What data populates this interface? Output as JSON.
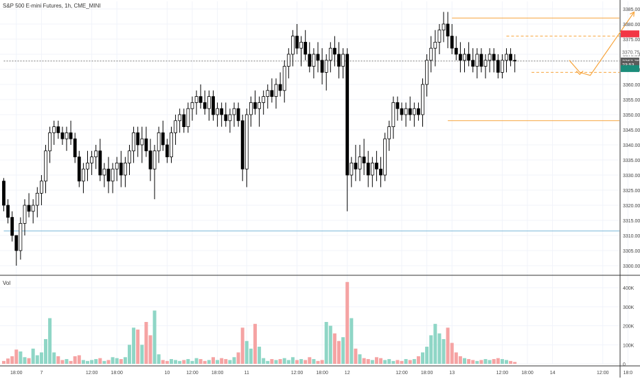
{
  "chart_data": {
    "type": "candlestick",
    "title": "S&P 500 E-mini Futures, 1h, CME_MINI",
    "price_axis": {
      "ticks": [
        3300,
        3305,
        3310,
        3315,
        3320,
        3325,
        3330,
        3335,
        3340,
        3345,
        3350,
        3355,
        3360,
        3365,
        3370,
        3375,
        3380,
        3385
      ],
      "tick_labels": [
        "3300.00",
        "3305.00",
        "3310.00",
        "3315.00",
        "3320.00",
        "3325.00",
        "3330.00",
        "3335.00",
        "3340.00",
        "3345.00",
        "3350.00",
        "3355.00",
        "3360.00",
        "3365.00",
        "3370.00",
        "3375.00",
        "3380.00",
        "3385.00"
      ],
      "range": [
        3297.5,
        3387.5
      ]
    },
    "price_labels": [
      {
        "value": 3376.75,
        "text": "3376.75",
        "color": "#f23645"
      },
      {
        "value": 3370.75,
        "text": "3370.75",
        "color": "#5b5b5b"
      },
      {
        "value": 3367.75,
        "text": "3367.75",
        "color": "#ffffff"
      },
      {
        "value": 3366.6,
        "text": "23:53",
        "color": "#ffffff"
      },
      {
        "value": 3365.25,
        "text": "3365.25",
        "color": "#1b8c7a"
      }
    ],
    "volume_axis": {
      "ticks": [
        0,
        100000,
        200000,
        300000,
        400000
      ],
      "tick_labels": [
        "0",
        "100K",
        "200K",
        "300K",
        "400K"
      ],
      "range": [
        0,
        440000
      ],
      "label": "Vol"
    },
    "time_axis_labels": [
      {
        "text": "18:00",
        "index": 3
      },
      {
        "text": "7",
        "index": 9
      },
      {
        "text": "12:00",
        "index": 21
      },
      {
        "text": "18:00",
        "index": 27
      },
      {
        "text": "10",
        "index": 39
      },
      {
        "text": "12:00",
        "index": 45
      },
      {
        "text": "18:00",
        "index": 51
      },
      {
        "text": "11",
        "index": 58
      },
      {
        "text": "12:00",
        "index": 70
      },
      {
        "text": "18:00",
        "index": 76
      },
      {
        "text": "12",
        "index": 82
      },
      {
        "text": "12:00",
        "index": 95
      },
      {
        "text": "18:00",
        "index": 101
      },
      {
        "text": "13",
        "index": 107
      },
      {
        "text": "12:00",
        "index": 119
      },
      {
        "text": "18:00",
        "index": 125
      },
      {
        "text": "14",
        "index": 131
      },
      {
        "text": "12:00",
        "index": 143
      },
      {
        "text": "18:0",
        "index": 149
      }
    ],
    "candles": [
      [
        3328,
        3329,
        3318,
        3320,
        15000
      ],
      [
        3320,
        3322,
        3314,
        3316,
        28000
      ],
      [
        3316,
        3318,
        3308,
        3310,
        40000
      ],
      [
        3310,
        3310,
        3300,
        3305,
        75000
      ],
      [
        3305,
        3316,
        3302,
        3314,
        65000
      ],
      [
        3314,
        3322,
        3310,
        3320,
        35000
      ],
      [
        3320,
        3324,
        3316,
        3318,
        30000
      ],
      [
        3318,
        3322,
        3314,
        3320,
        80000
      ],
      [
        3320,
        3326,
        3316,
        3324,
        45000
      ],
      [
        3324,
        3330,
        3320,
        3328,
        60000
      ],
      [
        3328,
        3340,
        3324,
        3338,
        130000
      ],
      [
        3338,
        3346,
        3334,
        3344,
        240000
      ],
      [
        3344,
        3348,
        3340,
        3346,
        60000
      ],
      [
        3346,
        3348,
        3342,
        3344,
        40000
      ],
      [
        3344,
        3346,
        3340,
        3342,
        20000
      ],
      [
        3342,
        3346,
        3338,
        3344,
        25000
      ],
      [
        3344,
        3348,
        3340,
        3342,
        15000
      ],
      [
        3342,
        3344,
        3334,
        3336,
        40000
      ],
      [
        3336,
        3338,
        3326,
        3328,
        45000
      ],
      [
        3328,
        3334,
        3324,
        3332,
        20000
      ],
      [
        3332,
        3338,
        3328,
        3334,
        15000
      ],
      [
        3334,
        3338,
        3330,
        3336,
        20000
      ],
      [
        3336,
        3340,
        3332,
        3338,
        25000
      ],
      [
        3338,
        3342,
        3328,
        3330,
        30000
      ],
      [
        3330,
        3334,
        3326,
        3332,
        15000
      ],
      [
        3332,
        3336,
        3324,
        3328,
        20000
      ],
      [
        3328,
        3334,
        3324,
        3332,
        35000
      ],
      [
        3332,
        3336,
        3328,
        3334,
        30000
      ],
      [
        3334,
        3338,
        3326,
        3330,
        25000
      ],
      [
        3330,
        3336,
        3326,
        3334,
        35000
      ],
      [
        3334,
        3340,
        3330,
        3338,
        100000
      ],
      [
        3338,
        3346,
        3334,
        3344,
        190000
      ],
      [
        3344,
        3346,
        3336,
        3340,
        180000
      ],
      [
        3340,
        3346,
        3334,
        3342,
        100000
      ],
      [
        3342,
        3346,
        3336,
        3338,
        220000
      ],
      [
        3338,
        3342,
        3328,
        3332,
        150000
      ],
      [
        3332,
        3340,
        3322,
        3338,
        280000
      ],
      [
        3338,
        3346,
        3334,
        3344,
        50000
      ],
      [
        3344,
        3348,
        3338,
        3340,
        20000
      ],
      [
        3340,
        3342,
        3334,
        3336,
        15000
      ],
      [
        3336,
        3346,
        3334,
        3344,
        25000
      ],
      [
        3344,
        3350,
        3340,
        3348,
        20000
      ],
      [
        3348,
        3352,
        3344,
        3350,
        15000
      ],
      [
        3350,
        3352,
        3344,
        3346,
        20000
      ],
      [
        3346,
        3354,
        3344,
        3352,
        25000
      ],
      [
        3352,
        3356,
        3348,
        3354,
        15000
      ],
      [
        3354,
        3358,
        3350,
        3356,
        30000
      ],
      [
        3356,
        3360,
        3352,
        3354,
        25000
      ],
      [
        3354,
        3358,
        3350,
        3352,
        15000
      ],
      [
        3352,
        3358,
        3348,
        3356,
        20000
      ],
      [
        3356,
        3358,
        3348,
        3350,
        35000
      ],
      [
        3350,
        3354,
        3346,
        3352,
        20000
      ],
      [
        3352,
        3354,
        3346,
        3350,
        30000
      ],
      [
        3350,
        3354,
        3346,
        3348,
        25000
      ],
      [
        3348,
        3352,
        3344,
        3350,
        20000
      ],
      [
        3350,
        3354,
        3346,
        3352,
        35000
      ],
      [
        3352,
        3354,
        3346,
        3348,
        60000
      ],
      [
        3348,
        3350,
        3328,
        3332,
        190000
      ],
      [
        3332,
        3352,
        3326,
        3350,
        120000
      ],
      [
        3350,
        3356,
        3346,
        3354,
        80000
      ],
      [
        3354,
        3358,
        3350,
        3352,
        210000
      ],
      [
        3352,
        3356,
        3346,
        3354,
        90000
      ],
      [
        3354,
        3358,
        3350,
        3356,
        30000
      ],
      [
        3356,
        3360,
        3352,
        3358,
        15000
      ],
      [
        3358,
        3362,
        3354,
        3356,
        25000
      ],
      [
        3356,
        3362,
        3352,
        3360,
        20000
      ],
      [
        3360,
        3364,
        3356,
        3358,
        25000
      ],
      [
        3358,
        3368,
        3354,
        3366,
        30000
      ],
      [
        3366,
        3372,
        3362,
        3370,
        20000
      ],
      [
        3370,
        3378,
        3366,
        3376,
        35000
      ],
      [
        3376,
        3380,
        3370,
        3372,
        20000
      ],
      [
        3372,
        3376,
        3366,
        3374,
        25000
      ],
      [
        3374,
        3378,
        3368,
        3370,
        20000
      ],
      [
        3370,
        3374,
        3364,
        3366,
        35000
      ],
      [
        3366,
        3372,
        3362,
        3370,
        25000
      ],
      [
        3370,
        3374,
        3364,
        3368,
        15000
      ],
      [
        3368,
        3372,
        3360,
        3364,
        20000
      ],
      [
        3364,
        3370,
        3358,
        3368,
        220000
      ],
      [
        3368,
        3374,
        3364,
        3372,
        200000
      ],
      [
        3372,
        3376,
        3366,
        3370,
        160000
      ],
      [
        3370,
        3374,
        3362,
        3366,
        120000
      ],
      [
        3366,
        3372,
        3362,
        3370,
        140000
      ],
      [
        3370,
        3372,
        3318,
        3330,
        430000
      ],
      [
        3330,
        3336,
        3326,
        3334,
        240000
      ],
      [
        3334,
        3340,
        3328,
        3332,
        80000
      ],
      [
        3332,
        3340,
        3328,
        3336,
        50000
      ],
      [
        3336,
        3342,
        3330,
        3334,
        30000
      ],
      [
        3334,
        3338,
        3326,
        3330,
        25000
      ],
      [
        3330,
        3336,
        3326,
        3334,
        20000
      ],
      [
        3334,
        3338,
        3328,
        3332,
        35000
      ],
      [
        3332,
        3336,
        3326,
        3330,
        30000
      ],
      [
        3330,
        3344,
        3328,
        3342,
        20000
      ],
      [
        3342,
        3348,
        3338,
        3346,
        25000
      ],
      [
        3346,
        3356,
        3342,
        3354,
        15000
      ],
      [
        3354,
        3356,
        3348,
        3352,
        20000
      ],
      [
        3352,
        3354,
        3348,
        3350,
        15000
      ],
      [
        3350,
        3354,
        3346,
        3352,
        25000
      ],
      [
        3352,
        3356,
        3348,
        3350,
        20000
      ],
      [
        3350,
        3354,
        3346,
        3352,
        25000
      ],
      [
        3352,
        3354,
        3348,
        3350,
        40000
      ],
      [
        3350,
        3362,
        3346,
        3360,
        60000
      ],
      [
        3360,
        3370,
        3356,
        3368,
        90000
      ],
      [
        3368,
        3376,
        3364,
        3372,
        150000
      ],
      [
        3372,
        3378,
        3366,
        3374,
        210000
      ],
      [
        3374,
        3380,
        3370,
        3378,
        160000
      ],
      [
        3378,
        3384,
        3374,
        3380,
        130000
      ],
      [
        3380,
        3384,
        3372,
        3376,
        190000
      ],
      [
        3376,
        3380,
        3370,
        3372,
        110000
      ],
      [
        3372,
        3376,
        3368,
        3370,
        60000
      ],
      [
        3370,
        3374,
        3364,
        3368,
        40000
      ],
      [
        3368,
        3372,
        3364,
        3370,
        30000
      ],
      [
        3370,
        3374,
        3366,
        3368,
        25000
      ],
      [
        3368,
        3372,
        3364,
        3366,
        20000
      ],
      [
        3366,
        3372,
        3362,
        3370,
        15000
      ],
      [
        3370,
        3372,
        3364,
        3366,
        20000
      ],
      [
        3366,
        3370,
        3362,
        3368,
        25000
      ],
      [
        3368,
        3372,
        3364,
        3370,
        20000
      ],
      [
        3370,
        3372,
        3364,
        3368,
        25000
      ],
      [
        3368,
        3370,
        3362,
        3364,
        30000
      ],
      [
        3364,
        3370,
        3362,
        3368,
        25000
      ],
      [
        3368,
        3372,
        3364,
        3370,
        20000
      ],
      [
        3370,
        3372,
        3366,
        3368,
        15000
      ],
      [
        3368,
        3370,
        3364,
        3367.75,
        10000
      ]
    ],
    "colors": {
      "up_body": "#ffffff",
      "down_body": "#000000",
      "wick": "#000000",
      "vol_up": "#8fd6c6",
      "vol_down": "#f5a3a3",
      "grid": "#f0f3fa",
      "orange": "#f7a33a",
      "blue": "#7ab8d9",
      "last_label": "#5b5b5b",
      "red_label": "#f23645",
      "green_label": "#1b8c7a"
    },
    "annotations": [
      {
        "type": "hline",
        "name": "resistance-line",
        "price": 3382,
        "from_index": 107,
        "to_index": 155,
        "color": "#f7a33a",
        "style": "solid"
      },
      {
        "type": "hline",
        "name": "target-dashed-line",
        "price": 3376,
        "from_index": 120,
        "to_index": 155,
        "color": "#f7a33a",
        "style": "dashed"
      },
      {
        "type": "hline",
        "name": "support-dashed-line",
        "price": 3364,
        "from_index": 126,
        "to_index": 155,
        "color": "#f7a33a",
        "style": "dashed"
      },
      {
        "type": "hline",
        "name": "lower-support-line",
        "price": 3348,
        "from_index": 106,
        "to_index": 155,
        "color": "#f7a33a",
        "style": "solid"
      },
      {
        "type": "hline",
        "name": "blue-support-line",
        "price": 3311.5,
        "from_index": 0,
        "to_index": 147,
        "color": "#7ab8d9",
        "style": "solid"
      },
      {
        "type": "hline",
        "name": "last-price-line",
        "price": 3367.75,
        "from_index": 0,
        "to_index": 155,
        "color": "#777777",
        "style": "dotted"
      },
      {
        "type": "polyline",
        "name": "forecast-path",
        "points": [
          [
            135,
            3368
          ],
          [
            137.5,
            3364
          ],
          [
            140,
            3363
          ],
          [
            150.5,
            3384
          ]
        ],
        "color": "#f7a33a"
      }
    ]
  }
}
